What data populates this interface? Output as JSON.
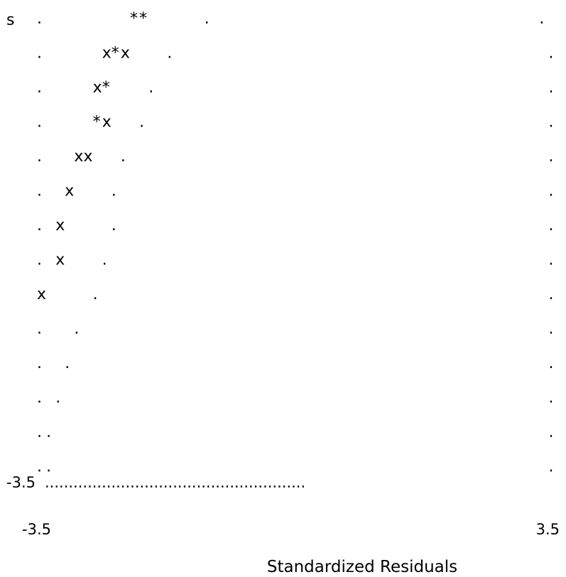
{
  "chart_data": {
    "type": "scatter",
    "style": "character plot",
    "xlabel": "Standardized Residuals",
    "x_tick_labels": [
      "-3.5",
      "3.5"
    ],
    "y_tick_labels": [
      "-3.5"
    ],
    "top_left_label": "s",
    "rows": [
      ".         **      .                                   .",
      ".      x*x    .                                        .",
      ".     x*    .                                          .",
      ".     *x   .                                           .",
      ".   xx   .                                             .",
      ".  x    .                                              .",
      ". x     .                                              .",
      ". x    .                                               .",
      "x     .                                                .",
      ".   .                                                  .",
      ".  .                                                   .",
      ". .                                                    .",
      "..                                                     .",
      "..                                                     .",
      "-3.5........................................................"
    ]
  }
}
